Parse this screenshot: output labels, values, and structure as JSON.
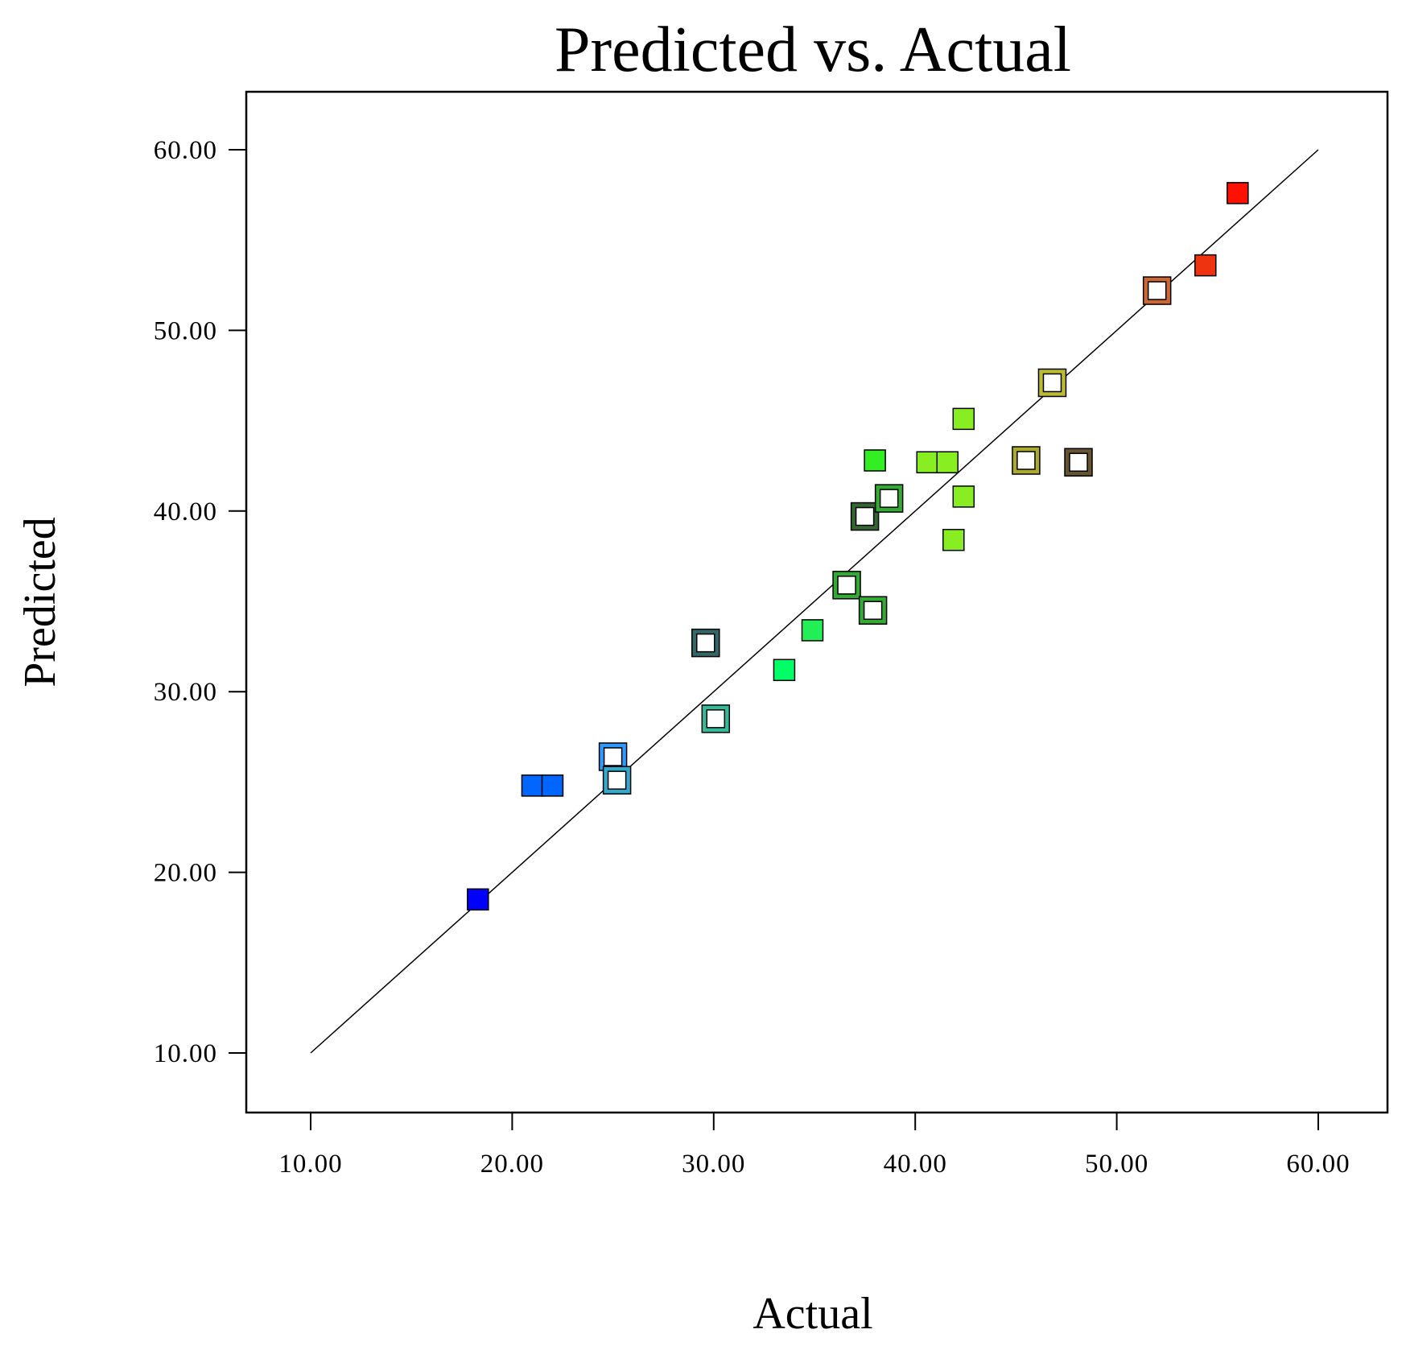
{
  "chart_data": {
    "type": "scatter",
    "title": "Predicted vs. Actual",
    "xlabel": "Actual",
    "ylabel": "Predicted",
    "xlim": [
      10,
      60
    ],
    "ylim": [
      10,
      60
    ],
    "x_ticks": [
      "10.00",
      "20.00",
      "30.00",
      "40.00",
      "50.00",
      "60.00"
    ],
    "y_ticks": [
      "10.00",
      "20.00",
      "30.00",
      "40.00",
      "50.00",
      "60.00"
    ],
    "grid": false,
    "reference_line": {
      "from": [
        10,
        10
      ],
      "to": [
        60,
        60
      ],
      "color": "#000000"
    },
    "points": [
      {
        "x": 18.3,
        "y": 18.5,
        "fill": "#0000ff",
        "style": "filled"
      },
      {
        "x": 21.0,
        "y": 24.8,
        "fill": "#0066ff",
        "style": "filled"
      },
      {
        "x": 22.0,
        "y": 24.8,
        "fill": "#0066ff",
        "style": "filled"
      },
      {
        "x": 25.0,
        "y": 26.4,
        "fill": "#3399ff",
        "style": "open"
      },
      {
        "x": 25.2,
        "y": 25.1,
        "fill": "#33aacc",
        "style": "open"
      },
      {
        "x": 29.6,
        "y": 32.7,
        "fill": "#336666",
        "style": "open"
      },
      {
        "x": 30.1,
        "y": 28.5,
        "fill": "#33bb99",
        "style": "open"
      },
      {
        "x": 33.5,
        "y": 31.2,
        "fill": "#00ff66",
        "style": "filled"
      },
      {
        "x": 34.9,
        "y": 33.4,
        "fill": "#22ee55",
        "style": "filled"
      },
      {
        "x": 36.6,
        "y": 35.9,
        "fill": "#33aa33",
        "style": "open"
      },
      {
        "x": 37.9,
        "y": 34.5,
        "fill": "#33aa33",
        "style": "open"
      },
      {
        "x": 37.5,
        "y": 39.7,
        "fill": "#336633",
        "style": "open"
      },
      {
        "x": 38.7,
        "y": 40.7,
        "fill": "#33aa33",
        "style": "open"
      },
      {
        "x": 38.0,
        "y": 42.8,
        "fill": "#33ee22",
        "style": "filled"
      },
      {
        "x": 40.6,
        "y": 42.7,
        "fill": "#88ee22",
        "style": "filled"
      },
      {
        "x": 41.6,
        "y": 42.7,
        "fill": "#88ee22",
        "style": "filled"
      },
      {
        "x": 42.4,
        "y": 45.1,
        "fill": "#88ee22",
        "style": "filled"
      },
      {
        "x": 42.4,
        "y": 40.8,
        "fill": "#88ee22",
        "style": "filled"
      },
      {
        "x": 41.9,
        "y": 38.4,
        "fill": "#88ee22",
        "style": "filled"
      },
      {
        "x": 45.5,
        "y": 42.8,
        "fill": "#aaaa33",
        "style": "open"
      },
      {
        "x": 48.1,
        "y": 42.7,
        "fill": "#665533",
        "style": "open"
      },
      {
        "x": 46.8,
        "y": 47.1,
        "fill": "#bbbb33",
        "style": "open"
      },
      {
        "x": 52.0,
        "y": 52.2,
        "fill": "#cc6633",
        "style": "open"
      },
      {
        "x": 54.4,
        "y": 53.6,
        "fill": "#ee3311",
        "style": "filled"
      },
      {
        "x": 56.0,
        "y": 57.6,
        "fill": "#ff1100",
        "style": "filled"
      }
    ]
  }
}
